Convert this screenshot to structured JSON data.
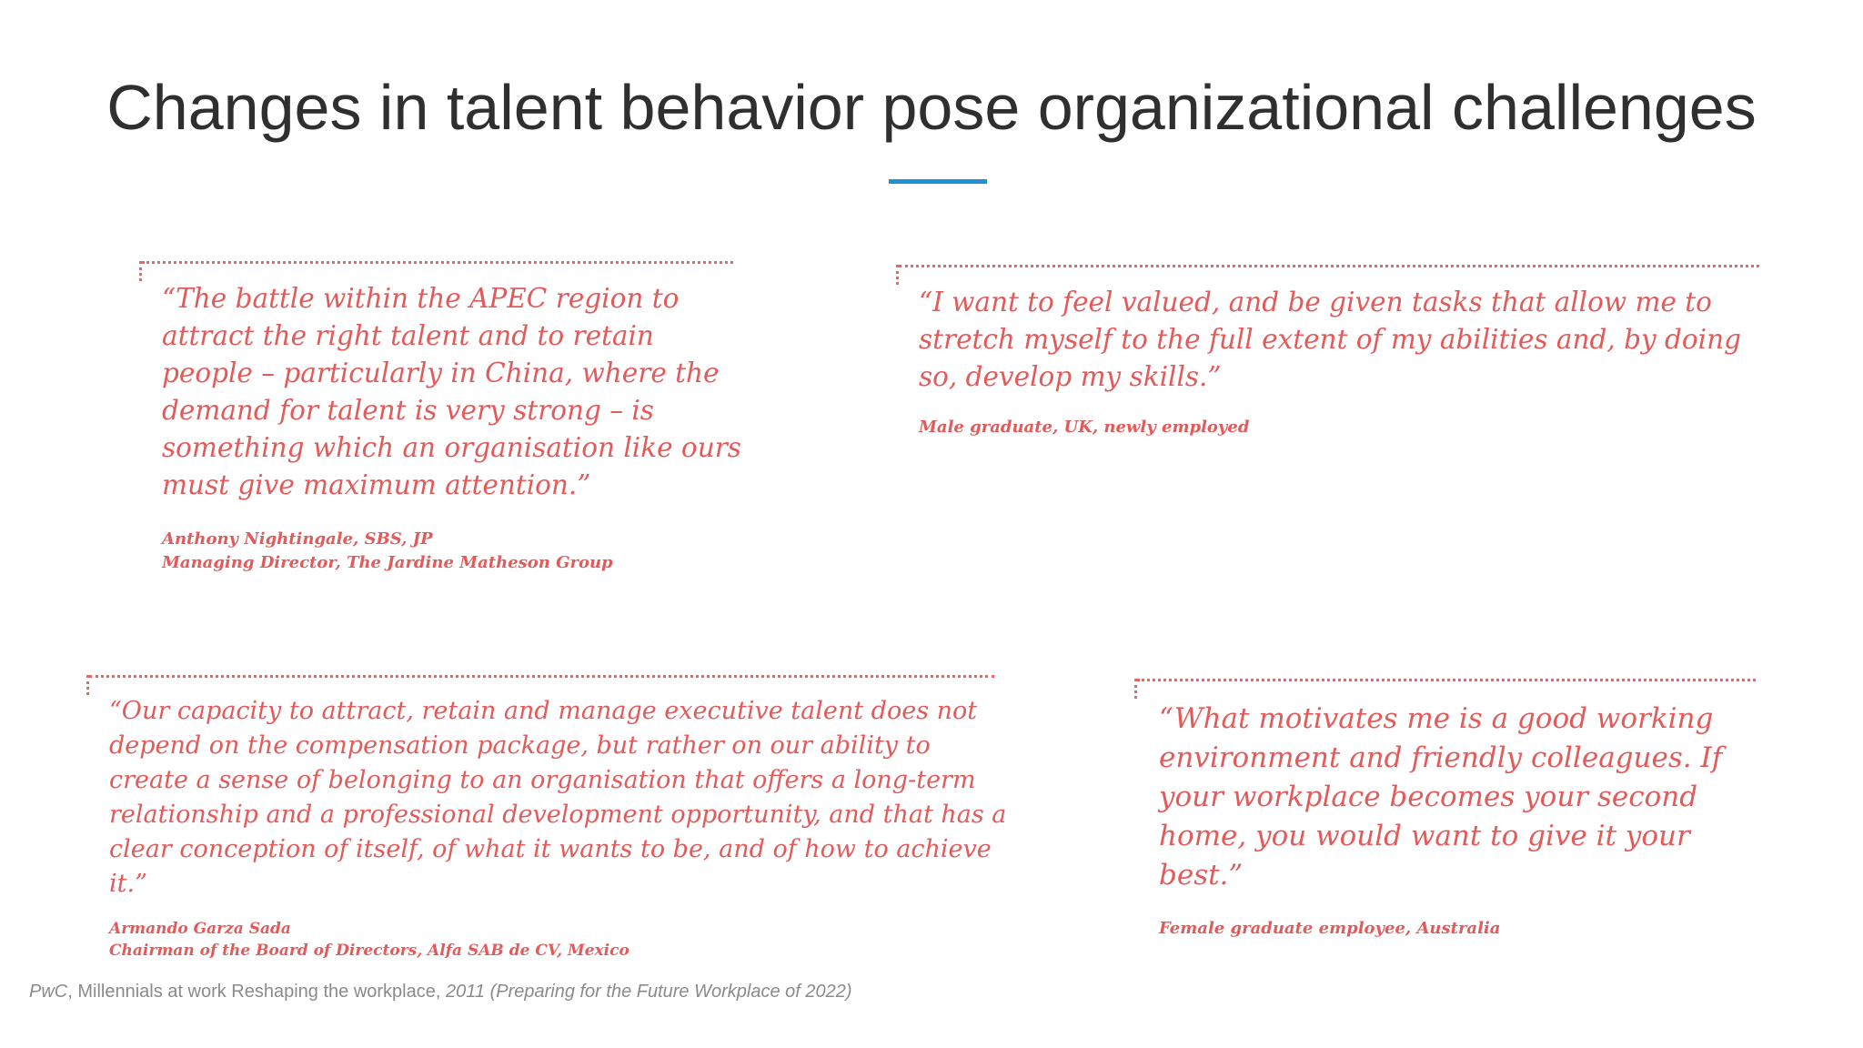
{
  "slide": {
    "title": "Changes in talent behavior pose organizational challenges"
  },
  "quotes": [
    {
      "text": "“The battle within the APEC region to attract the right talent and to retain people – particularly in China, where the demand for talent is very strong – is something which an organisation like ours must give maximum attention.”",
      "attribution": [
        "Anthony Nightingale, SBS, JP",
        "Managing Director, The Jardine Matheson Group"
      ]
    },
    {
      "text": "“I want to feel valued, and be given tasks that allow me to stretch myself to the full extent of my abilities and, by doing so, develop my skills.”",
      "attribution": [
        "Male graduate, UK, newly employed"
      ]
    },
    {
      "text": "“Our capacity to attract, retain and manage executive talent does not depend on the compensation package, but rather on our ability to create a sense of belonging to an organisation that offers a long-term relationship and a professional development opportunity, and that has a clear conception of itself, of what it wants to be, and of how to achieve it.”",
      "attribution": [
        "Armando Garza Sada",
        "Chairman of the Board of Directors, Alfa SAB de CV, Mexico"
      ]
    },
    {
      "text": "“What motivates me is a good working environment and friendly colleagues. If your workplace becomes your second home, you would want to give it your best.”",
      "attribution": [
        "Female graduate employee, Australia"
      ]
    }
  ],
  "source": {
    "publisher": "PwC",
    "middle": ", Millennials at work Reshaping the workplace, ",
    "tail": "2011 (Preparing for the Future Workplace of 2022)"
  },
  "colors": {
    "quote": "#e35a5a",
    "accent_rule": "#1e90d6",
    "title": "#2f2f2f",
    "source": "#8a8a8a"
  }
}
